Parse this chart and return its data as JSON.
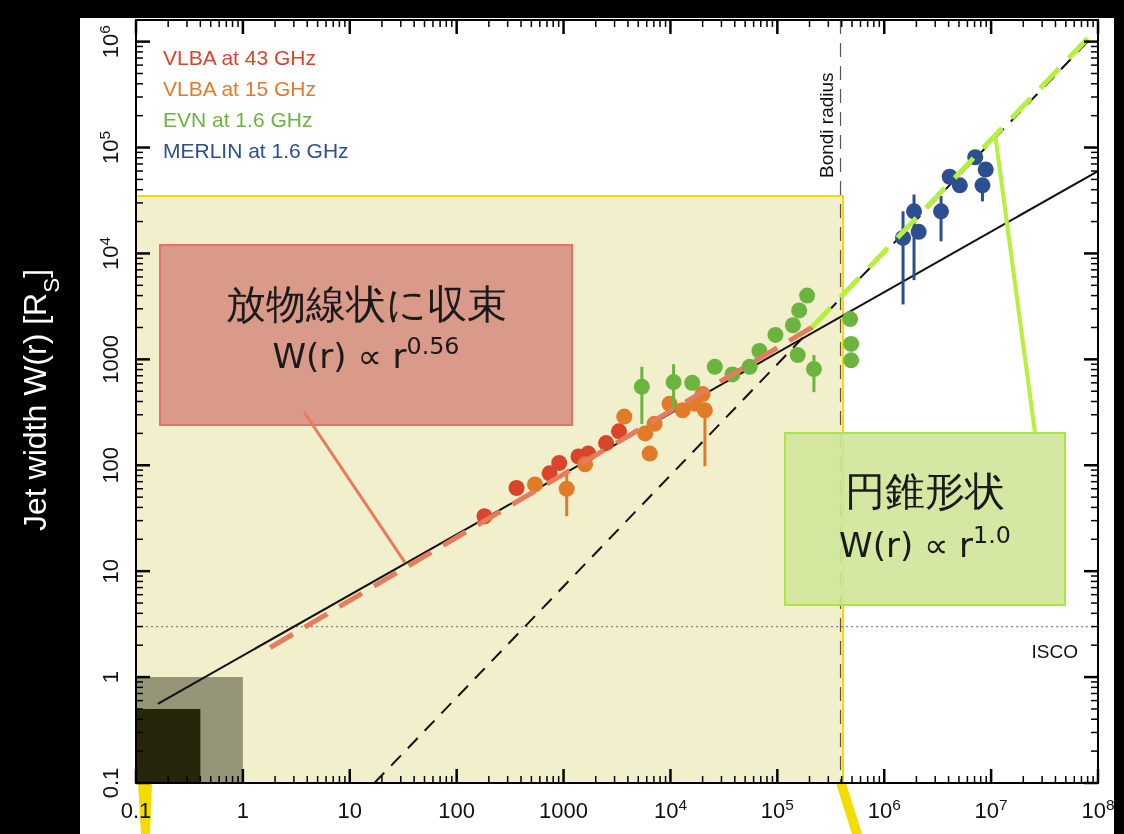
{
  "chart_data": {
    "type": "scatter",
    "ylabel": "Jet width W(r) [R$_{S}$]",
    "log": "xy",
    "marker": "circle",
    "legend": "top left",
    "xlim": [
      0.1,
      100000000
    ],
    "ylim": [
      0.1,
      1600000
    ],
    "xticks": [
      0.1,
      1,
      10,
      100,
      1000,
      {
        "value": 10000,
        "label": "10$^{4}$"
      },
      {
        "value": 100000,
        "label": "10$^{5}$"
      },
      {
        "value": 1000000,
        "label": "10$^{6}$"
      },
      {
        "value": 10000000,
        "label": "10$^{7}$"
      },
      {
        "value": 100000000,
        "label": "10$^{8}$"
      }
    ],
    "yticks": [
      0.1,
      1,
      10,
      100,
      1000,
      {
        "value": 10000,
        "label": "10$^{4}$"
      },
      {
        "value": 100000,
        "label": "10$^{5}$"
      },
      {
        "value": 1000000,
        "label": "10$^{6}$"
      }
    ],
    "series": [
      {
        "type": "area",
        "color": "#979577",
        "marker": "none",
        "x": [
          0.1,
          1
        ],
        "values": [
          1,
          1
        ]
      },
      {
        "type": "area",
        "color": "#27250b",
        "marker": "none",
        "x": [
          0.1,
          0.4
        ],
        "values": [
          0.5,
          0.5
        ]
      },
      {
        "type": "line",
        "color": "#111111",
        "line_style": "solid",
        "marker": "none",
        "x": [
          0.16,
          100000000
        ],
        "values": [
          0.56,
          60000
        ]
      },
      {
        "type": "line",
        "color": "#111111",
        "line_style": "dashed",
        "marker": "none",
        "x": [
          17,
          80000000
        ],
        "values": [
          0.1,
          1000000
        ]
      },
      {
        "name": "VLBA at 43 GHz",
        "color": "#d9452b",
        "x": [
          182,
          363,
          740,
          910,
          1380,
          1700,
          2500,
          3300
        ],
        "values": [
          33,
          61,
          84,
          105,
          121,
          129,
          162,
          209
        ]
      },
      {
        "name": "VLBA at 15 GHz",
        "color": "#e07b2a",
        "x": [
          540,
          1070,
          1590,
          3700,
          5800,
          6400,
          7100,
          9800,
          13000,
          17000,
          20000,
          21000
        ],
        "values": [
          66,
          60,
          102,
          288,
          200,
          129,
          246,
          380,
          330,
          380,
          470,
          330
        ],
        "errors": [
          null,
          [
            33,
            84
          ],
          null,
          null,
          null,
          null,
          null,
          null,
          null,
          null,
          null,
          [
            98,
            330
          ]
        ]
      },
      {
        "name": "EVN at 1.6 GHz",
        "color": "#6db33f",
        "x": [
          5400,
          10700,
          16000,
          26000,
          38000,
          55000,
          68000,
          96000,
          140000,
          160000,
          190000,
          155000,
          220000,
          480000,
          490000,
          490000
        ],
        "values": [
          550,
          610,
          600,
          850,
          720,
          850,
          1200,
          1700,
          2100,
          2900,
          4000,
          1100,
          810,
          2400,
          1400,
          980
        ],
        "errors": [
          [
            245,
            850
          ],
          [
            330,
            900
          ],
          null,
          null,
          null,
          null,
          null,
          null,
          null,
          null,
          null,
          null,
          [
            490,
            1100
          ],
          null,
          null,
          null
        ]
      },
      {
        "name": "MERLIN at 1.6 GHz",
        "color": "#2b4f8f",
        "x": [
          1500000,
          1900000,
          2100000,
          3400000,
          4100000,
          5100000,
          7100000,
          8900000,
          8300000
        ],
        "values": [
          14000,
          25000,
          16000,
          25000,
          53000,
          44000,
          81000,
          62000,
          44000
        ],
        "errors": [
          [
            3300,
            25000
          ],
          [
            5600,
            36000
          ],
          null,
          [
            13000,
            35000
          ],
          null,
          null,
          null,
          null,
          [
            31000,
            44000
          ]
        ]
      },
      {
        "type": "line",
        "color": "#e57c5e",
        "line_style": "dashed",
        "marker": "none",
        "x": [
          1.8,
          210000
        ],
        "values": [
          1.9,
          2000
        ]
      },
      {
        "type": "line",
        "color": "#b5f03c",
        "line_style": "dashed",
        "marker": "none",
        "x": [
          210000,
          80000000
        ],
        "values": [
          2000,
          1070000
        ]
      }
    ],
    "ref_lines": [
      {
        "axis": "y",
        "value": 3,
        "label": "ISCO",
        "line_style": "dotted",
        "color": "#888888"
      },
      {
        "axis": "x",
        "value": 390000,
        "label": "Bondi radius",
        "line_style": "dashed",
        "color": "#555555"
      }
    ],
    "annotations": [
      "放物線状に収束",
      {
        "text": "W(r) ∝ r$^{0.56}$",
        "x": 33,
        "y": 12
      },
      {
        "text": "円錐形状",
        "x": 11000000,
        "y": 124000
      },
      "W(r) ∝ r$^{1.0}$"
    ]
  }
}
